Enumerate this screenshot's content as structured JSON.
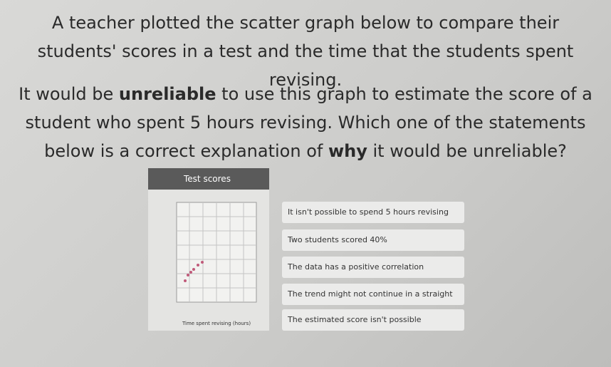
{
  "question": {
    "intro": "A teacher plotted the scatter graph below to compare their students' scores in a test and the time that the students spent revising.",
    "prompt": [
      "It would be ",
      "unreliable",
      " to use this graph to estimate the score of a student who spent 5 hours revising. Which one of the statements below is a correct explanation of ",
      "why",
      " it would be unreliable?"
    ]
  },
  "chart": {
    "title": "Test scores",
    "x_label": "Time spent revising (hours)"
  },
  "options": [
    "It isn't possible to spend 5 hours revising",
    "Two students scored 40%",
    "The data has a positive correlation",
    "The trend might not continue in a straight line",
    "The estimated score isn't possible"
  ]
}
